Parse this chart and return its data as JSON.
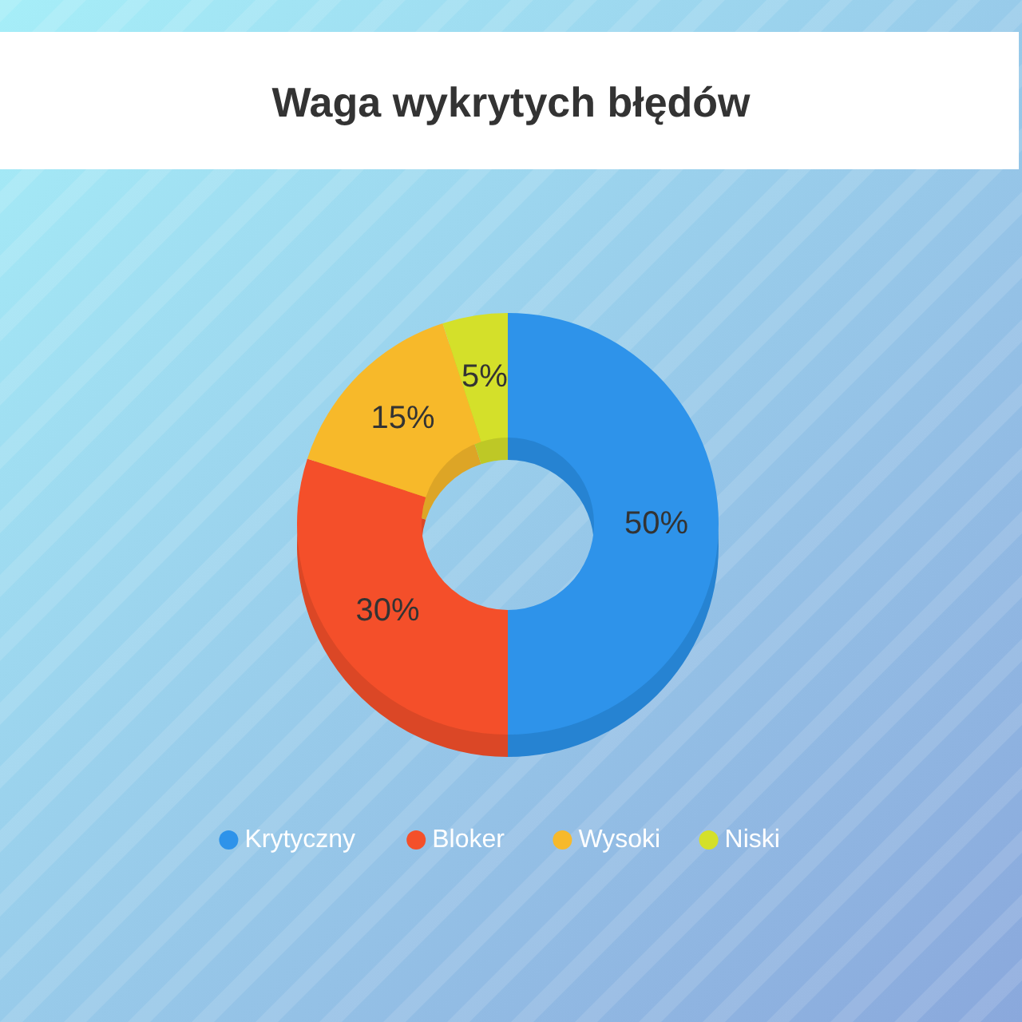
{
  "chart_data": {
    "type": "donut",
    "title": "Waga wykrytych błędów",
    "categories": [
      "Krytyczny",
      "Bloker",
      "Wysoki",
      "Niski"
    ],
    "values": [
      50,
      30,
      15,
      5
    ],
    "colors": [
      "#2e93ea",
      "#f4502a",
      "#f7b92b",
      "#d4e02a"
    ],
    "value_labels": [
      "50%",
      "30%",
      "15%",
      "5%"
    ],
    "legend": "bottom"
  }
}
